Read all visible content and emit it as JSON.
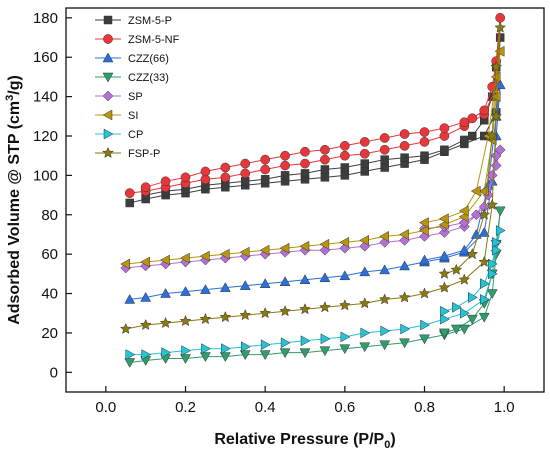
{
  "chart_data": {
    "type": "scatter",
    "xlabel": "Relative Pressure (P/P",
    "xlabel_sub": "0",
    "xlabel_end": ")",
    "ylabel_pre": "Adsorbed Volume @ STP (cm",
    "ylabel_sup": "3",
    "ylabel_post": "/g)",
    "xlim": [
      -0.1,
      1.1
    ],
    "ylim": [
      -10,
      185
    ],
    "xticks": [
      "0.0",
      "0.2",
      "0.4",
      "0.6",
      "0.8",
      "1.0"
    ],
    "xtick_values": [
      0,
      0.2,
      0.4,
      0.6,
      0.8,
      1.0
    ],
    "yticks": [
      "0",
      "20",
      "40",
      "60",
      "80",
      "100",
      "120",
      "140",
      "160",
      "180"
    ],
    "ytick_values": [
      0,
      20,
      40,
      60,
      80,
      100,
      120,
      140,
      160,
      180
    ],
    "legend_position": "top-left",
    "series": [
      {
        "name": "ZSM-5-P",
        "color": "#3d3d3d",
        "marker": "square",
        "x": [
          0.06,
          0.1,
          0.15,
          0.2,
          0.25,
          0.3,
          0.35,
          0.4,
          0.45,
          0.5,
          0.55,
          0.6,
          0.65,
          0.7,
          0.75,
          0.8,
          0.85,
          0.9,
          0.95,
          0.98,
          0.99,
          0.98,
          0.97,
          0.95,
          0.92,
          0.9,
          0.85,
          0.8,
          0.75,
          0.7,
          0.65,
          0.6,
          0.55,
          0.5,
          0.45,
          0.4,
          0.35,
          0.3,
          0.25,
          0.2,
          0.15,
          0.1
        ],
        "y": [
          86,
          88,
          90,
          91,
          93,
          94,
          95,
          96,
          97,
          98,
          99,
          100,
          102,
          104,
          106,
          108,
          112,
          116,
          120,
          132,
          170,
          155,
          140,
          128,
          120,
          118,
          113,
          110,
          109,
          108,
          106,
          104,
          103,
          101,
          100,
          98,
          97,
          96,
          95,
          93,
          92,
          90
        ]
      },
      {
        "name": "ZSM-5-NF",
        "color": "#e8363a",
        "marker": "circle",
        "x": [
          0.06,
          0.1,
          0.15,
          0.2,
          0.25,
          0.3,
          0.35,
          0.4,
          0.45,
          0.5,
          0.55,
          0.6,
          0.65,
          0.7,
          0.75,
          0.8,
          0.85,
          0.9,
          0.95,
          0.98,
          0.99,
          0.98,
          0.97,
          0.95,
          0.92,
          0.9,
          0.85,
          0.8,
          0.75,
          0.7,
          0.65,
          0.6,
          0.55,
          0.5,
          0.45,
          0.4,
          0.35,
          0.3,
          0.25,
          0.2,
          0.15,
          0.1
        ],
        "y": [
          91,
          92,
          94,
          96,
          98,
          99,
          101,
          103,
          105,
          106,
          108,
          110,
          111,
          113,
          115,
          117,
          120,
          125,
          131,
          145,
          180,
          158,
          145,
          133,
          129,
          127,
          124,
          122,
          121,
          119,
          117,
          115,
          113,
          112,
          110,
          108,
          106,
          104,
          102,
          99,
          97,
          94
        ]
      },
      {
        "name": "CZZ(66)",
        "color": "#2a6fdb",
        "marker": "triangle-up",
        "x": [
          0.06,
          0.1,
          0.15,
          0.2,
          0.25,
          0.3,
          0.35,
          0.4,
          0.45,
          0.5,
          0.55,
          0.6,
          0.65,
          0.7,
          0.75,
          0.8,
          0.85,
          0.9,
          0.95,
          0.97,
          0.98,
          0.99,
          0.98,
          0.96,
          0.93,
          0.9,
          0.85,
          0.8
        ],
        "y": [
          37,
          38,
          40,
          41,
          42,
          43,
          44,
          45,
          46,
          47,
          48,
          49,
          51,
          52,
          54,
          56,
          58,
          61,
          71,
          97,
          120,
          146,
          130,
          95,
          70,
          62,
          59,
          57
        ]
      },
      {
        "name": "CZZ(33)",
        "color": "#2e9e6b",
        "marker": "triangle-down",
        "x": [
          0.06,
          0.1,
          0.15,
          0.2,
          0.25,
          0.3,
          0.35,
          0.4,
          0.45,
          0.5,
          0.55,
          0.6,
          0.65,
          0.7,
          0.75,
          0.8,
          0.85,
          0.9,
          0.95,
          0.97,
          0.98,
          0.99,
          0.98,
          0.97,
          0.95,
          0.92,
          0.88,
          0.85
        ],
        "y": [
          5,
          6,
          7,
          7,
          8,
          8,
          9,
          9,
          10,
          10,
          11,
          12,
          13,
          14,
          15,
          17,
          19,
          22,
          28,
          40,
          60,
          82,
          65,
          50,
          35,
          27,
          22,
          20
        ]
      },
      {
        "name": "SP",
        "color": "#b56fd8",
        "marker": "diamond",
        "x": [
          0.05,
          0.1,
          0.15,
          0.2,
          0.25,
          0.3,
          0.35,
          0.4,
          0.45,
          0.5,
          0.55,
          0.6,
          0.65,
          0.7,
          0.75,
          0.8,
          0.85,
          0.9,
          0.95,
          0.97,
          0.98,
          0.99,
          0.98,
          0.96,
          0.93,
          0.9,
          0.85,
          0.8
        ],
        "y": [
          53,
          54,
          55,
          56,
          57,
          58,
          59,
          60,
          61,
          62,
          62,
          63,
          64,
          66,
          67,
          69,
          71,
          74,
          84,
          100,
          110,
          113,
          105,
          90,
          80,
          76,
          74,
          73
        ]
      },
      {
        "name": "SI",
        "color": "#b8960c",
        "marker": "triangle-left",
        "x": [
          0.05,
          0.1,
          0.15,
          0.2,
          0.25,
          0.3,
          0.35,
          0.4,
          0.45,
          0.5,
          0.55,
          0.6,
          0.65,
          0.7,
          0.75,
          0.8,
          0.85,
          0.9,
          0.95,
          0.97,
          0.98,
          0.99,
          0.98,
          0.96,
          0.93,
          0.9,
          0.85,
          0.8
        ],
        "y": [
          55,
          56,
          57,
          58,
          59,
          60,
          61,
          62,
          63,
          64,
          65,
          66,
          67,
          69,
          70,
          72,
          75,
          79,
          92,
          118,
          140,
          163,
          150,
          120,
          92,
          82,
          78,
          76
        ]
      },
      {
        "name": "CP",
        "color": "#24c4d8",
        "marker": "triangle-right",
        "x": [
          0.06,
          0.1,
          0.15,
          0.2,
          0.25,
          0.3,
          0.35,
          0.4,
          0.45,
          0.5,
          0.55,
          0.6,
          0.65,
          0.7,
          0.75,
          0.8,
          0.85,
          0.9,
          0.95,
          0.97,
          0.98,
          0.99,
          0.98,
          0.97,
          0.95,
          0.92,
          0.88,
          0.85
        ],
        "y": [
          9,
          9,
          10,
          11,
          12,
          12,
          13,
          14,
          15,
          16,
          17,
          18,
          20,
          21,
          22,
          24,
          27,
          30,
          37,
          50,
          62,
          72,
          66,
          55,
          45,
          38,
          33,
          31
        ]
      },
      {
        "name": "FSP-P",
        "color": "#8a7a10",
        "marker": "star",
        "x": [
          0.05,
          0.1,
          0.15,
          0.2,
          0.25,
          0.3,
          0.35,
          0.4,
          0.45,
          0.5,
          0.55,
          0.6,
          0.65,
          0.7,
          0.75,
          0.8,
          0.85,
          0.9,
          0.95,
          0.97,
          0.98,
          0.99,
          0.98,
          0.97,
          0.95,
          0.92,
          0.88,
          0.85
        ],
        "y": [
          22,
          24,
          25,
          26,
          27,
          28,
          29,
          30,
          31,
          32,
          33,
          34,
          35,
          37,
          38,
          40,
          43,
          47,
          56,
          85,
          130,
          175,
          155,
          120,
          80,
          60,
          52,
          50
        ]
      }
    ]
  }
}
